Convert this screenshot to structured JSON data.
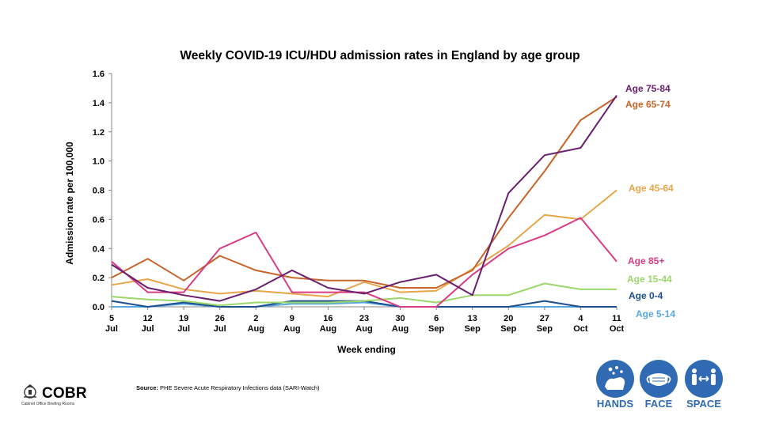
{
  "chart_data": {
    "type": "line",
    "title": "Weekly COVID-19 ICU/HDU admission rates in England by age group",
    "xlabel": "Week ending",
    "ylabel": "Admission rate per 100,000",
    "ylim": [
      0,
      1.6
    ],
    "yticks": [
      "0.0",
      "0.2",
      "0.4",
      "0.6",
      "0.8",
      "1.0",
      "1.2",
      "1.4",
      "1.6"
    ],
    "categories": [
      [
        "5",
        "Jul"
      ],
      [
        "12",
        "Jul"
      ],
      [
        "19",
        "Jul"
      ],
      [
        "26",
        "Jul"
      ],
      [
        "2",
        "Aug"
      ],
      [
        "9",
        "Aug"
      ],
      [
        "16",
        "Aug"
      ],
      [
        "23",
        "Aug"
      ],
      [
        "30",
        "Aug"
      ],
      [
        "6",
        "Sep"
      ],
      [
        "13",
        "Sep"
      ],
      [
        "20",
        "Sep"
      ],
      [
        "27",
        "Sep"
      ],
      [
        "4",
        "Oct"
      ],
      [
        "11",
        "Oct"
      ]
    ],
    "grid": false,
    "legend": "direct labels at right end of lines",
    "series": [
      {
        "name": "Age 75-84",
        "color": "#6a1f6e",
        "values": [
          0.29,
          0.13,
          0.08,
          0.04,
          0.12,
          0.25,
          0.13,
          0.09,
          0.17,
          0.22,
          0.08,
          0.78,
          1.04,
          1.09,
          1.45
        ]
      },
      {
        "name": "Age 65-74",
        "color": "#c8642a",
        "values": [
          0.2,
          0.33,
          0.18,
          0.35,
          0.25,
          0.2,
          0.18,
          0.18,
          0.13,
          0.13,
          0.25,
          0.61,
          0.93,
          1.28,
          1.44
        ]
      },
      {
        "name": "Age 45-64",
        "color": "#e8a64a",
        "values": [
          0.15,
          0.19,
          0.12,
          0.09,
          0.11,
          0.09,
          0.07,
          0.17,
          0.1,
          0.11,
          0.26,
          0.42,
          0.63,
          0.6,
          0.8
        ]
      },
      {
        "name": "Age 85+",
        "color": "#d83c84",
        "values": [
          0.31,
          0.1,
          0.1,
          0.4,
          0.51,
          0.1,
          0.1,
          0.1,
          0.0,
          0.0,
          0.22,
          0.4,
          0.49,
          0.61,
          0.31
        ]
      },
      {
        "name": "Age 15-44",
        "color": "#9bd76a",
        "values": [
          0.07,
          0.05,
          0.04,
          0.01,
          0.03,
          0.03,
          0.03,
          0.04,
          0.06,
          0.03,
          0.08,
          0.08,
          0.16,
          0.12,
          0.12
        ]
      },
      {
        "name": "Age 0-4",
        "color": "#1d4f8f",
        "values": [
          0.04,
          0.0,
          0.03,
          0.0,
          0.0,
          0.04,
          0.04,
          0.04,
          0.0,
          0.0,
          0.0,
          0.0,
          0.04,
          0.0,
          0.0
        ]
      },
      {
        "name": "Age 5-14",
        "color": "#5aa8e0",
        "values": [
          0.0,
          0.0,
          0.02,
          0.0,
          0.0,
          0.02,
          0.02,
          0.03,
          0.0,
          0.0,
          0.0,
          0.0,
          0.0,
          0.0,
          0.0
        ]
      }
    ]
  },
  "source": {
    "prefix": "Source:",
    "text": "PHE Severe Acute Respiratory Infections data (SARI-Watch)"
  },
  "logo": {
    "name": "COBR",
    "subtitle": "Cabinet Office Briefing Rooms"
  },
  "hfs": {
    "hands": "HANDS",
    "face": "FACE",
    "space": "SPACE",
    "color": "#2f6ab2"
  }
}
